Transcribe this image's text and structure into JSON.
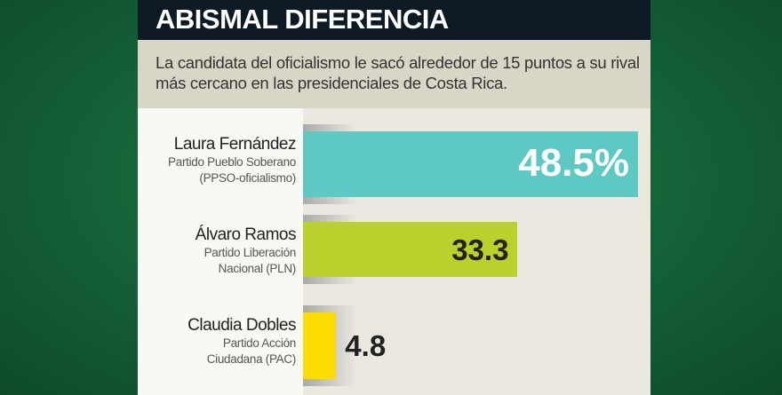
{
  "header": {
    "title": "ABISMAL DIFERENCIA"
  },
  "subtitle": "La candidata del oficialismo le sacó alrededor de 15 puntos a su rival más cercano en las presidenciales de Costa Rica.",
  "chart_data": {
    "type": "bar",
    "orientation": "horizontal",
    "title": "ABISMAL DIFERENCIA",
    "categories": [
      "Laura Fernández",
      "Álvaro Ramos",
      "Claudia Dobles"
    ],
    "parties": [
      "Partido Pueblo Soberano (PPSO-oficialismo)",
      "Partido Liberación Nacional (PLN)",
      "Partido Acción Ciudadana (PAC)"
    ],
    "party_lines": [
      [
        "Partido Pueblo Soberano",
        "(PPSO-oficialismo)"
      ],
      [
        "Partido Liberación",
        "Nacional (PLN)"
      ],
      [
        "Partido Acción",
        "Ciudadana (PAC)"
      ]
    ],
    "values": [
      48.5,
      33.3,
      4.8
    ],
    "labels": [
      "48.5%",
      "33.3",
      "4.8"
    ],
    "colors": [
      "#5ec8c2",
      "#bbd12b",
      "#fbdc00"
    ],
    "unit": "%"
  }
}
